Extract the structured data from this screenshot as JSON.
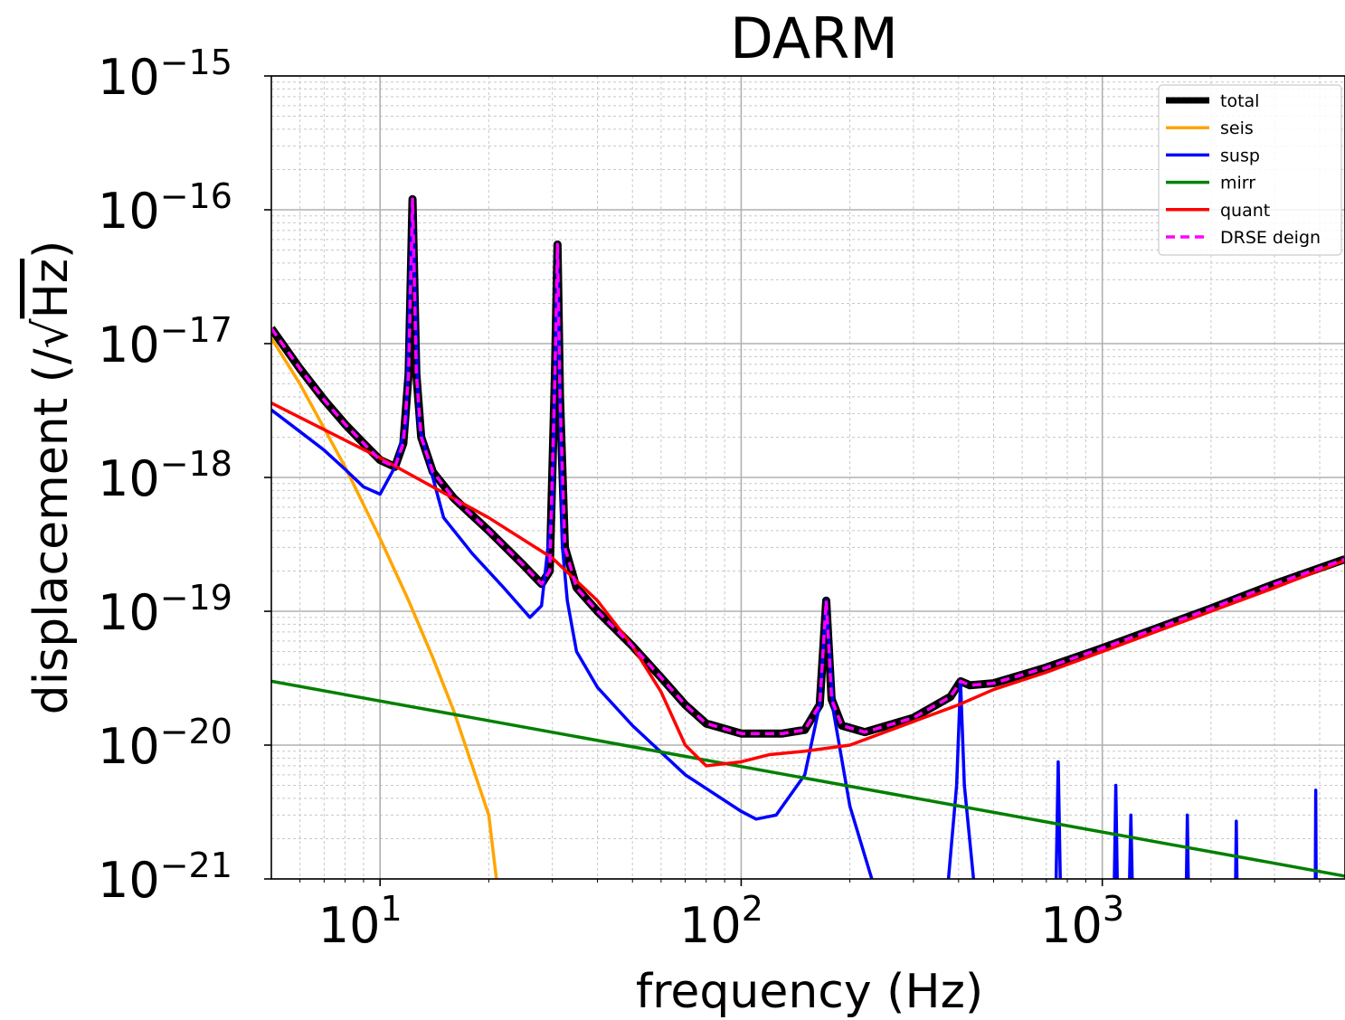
{
  "chart_data": {
    "type": "line",
    "title": "DARM",
    "xlabel": "frequency (Hz)",
    "ylabel_prefix": "displacement (/",
    "ylabel_radical": "√",
    "ylabel_unit": "Hz",
    "ylabel_suffix": ")",
    "x_scale": "log",
    "y_scale": "log",
    "xlim": [
      5,
      4700
    ],
    "ylim": [
      1e-21,
      1e-15
    ],
    "grid": "major and minor",
    "legend_position": "top-right",
    "x_ticks": [
      {
        "value": 10,
        "base": "10",
        "exp": "1"
      },
      {
        "value": 100,
        "base": "10",
        "exp": "2"
      },
      {
        "value": 1000,
        "base": "10",
        "exp": "3"
      }
    ],
    "y_ticks": [
      {
        "value": 1e-15,
        "base": "10",
        "exp": "−15"
      },
      {
        "value": 1e-16,
        "base": "10",
        "exp": "−16"
      },
      {
        "value": 1e-17,
        "base": "10",
        "exp": "−17"
      },
      {
        "value": 1e-18,
        "base": "10",
        "exp": "−18"
      },
      {
        "value": 1e-19,
        "base": "10",
        "exp": "−19"
      },
      {
        "value": 1e-20,
        "base": "10",
        "exp": "−20"
      },
      {
        "value": 1e-21,
        "base": "10",
        "exp": "−21"
      }
    ],
    "series": [
      {
        "name": "total",
        "color": "#000000",
        "style": "solid",
        "width": 9,
        "points": [
          [
            5,
            1.3e-17
          ],
          [
            6,
            6.5e-18
          ],
          [
            7,
            3.8e-18
          ],
          [
            8,
            2.5e-18
          ],
          [
            9,
            1.8e-18
          ],
          [
            10,
            1.35e-18
          ],
          [
            11,
            1.2e-18
          ],
          [
            11.6,
            1.8e-18
          ],
          [
            12,
            6e-18
          ],
          [
            12.3,
            1.2e-16
          ],
          [
            12.6,
            6e-18
          ],
          [
            13,
            2e-18
          ],
          [
            14,
            1.1e-18
          ],
          [
            16,
            7e-19
          ],
          [
            20,
            4e-19
          ],
          [
            25,
            2.2e-19
          ],
          [
            28,
            1.6e-19
          ],
          [
            29.5,
            2e-19
          ],
          [
            30.5,
            6e-18
          ],
          [
            31,
            5.5e-17
          ],
          [
            31.5,
            4e-18
          ],
          [
            32.5,
            3e-19
          ],
          [
            35,
            1.5e-19
          ],
          [
            40,
            1e-19
          ],
          [
            50,
            5.5e-20
          ],
          [
            60,
            3.2e-20
          ],
          [
            70,
            2e-20
          ],
          [
            80,
            1.45e-20
          ],
          [
            100,
            1.22e-20
          ],
          [
            130,
            1.22e-20
          ],
          [
            150,
            1.3e-20
          ],
          [
            165,
            2e-20
          ],
          [
            172,
            1.2e-19
          ],
          [
            178,
            2.2e-20
          ],
          [
            190,
            1.4e-20
          ],
          [
            220,
            1.25e-20
          ],
          [
            300,
            1.6e-20
          ],
          [
            380,
            2.3e-20
          ],
          [
            405,
            3e-20
          ],
          [
            430,
            2.8e-20
          ],
          [
            500,
            2.9e-20
          ],
          [
            700,
            3.8e-20
          ],
          [
            1000,
            5.3e-20
          ],
          [
            2000,
            1.05e-19
          ],
          [
            3000,
            1.6e-19
          ],
          [
            4700,
            2.45e-19
          ]
        ]
      },
      {
        "name": "seis",
        "color": "#ffa500",
        "style": "solid",
        "width": 3.5,
        "points": [
          [
            5,
            1.1e-17
          ],
          [
            6,
            5e-18
          ],
          [
            8,
            1.2e-18
          ],
          [
            10,
            3.5e-19
          ],
          [
            12,
            1.2e-19
          ],
          [
            14,
            4.5e-20
          ],
          [
            16,
            1.8e-20
          ],
          [
            18,
            7e-21
          ],
          [
            20,
            3e-21
          ],
          [
            21,
            1e-21
          ]
        ]
      },
      {
        "name": "susp",
        "color": "#0000ff",
        "style": "solid",
        "width": 3.5,
        "segments": [
          [
            [
              5,
              3.2e-18
            ],
            [
              6,
              2.2e-18
            ],
            [
              7,
              1.6e-18
            ],
            [
              8,
              1.15e-18
            ],
            [
              9,
              8.5e-19
            ],
            [
              10,
              7.5e-19
            ],
            [
              11,
              1.2e-18
            ],
            [
              11.8,
              2.5e-18
            ],
            [
              12.3,
              1.2e-16
            ],
            [
              12.8,
              2.5e-18
            ],
            [
              14,
              1e-18
            ],
            [
              15,
              5e-19
            ],
            [
              18,
              2.7e-19
            ],
            [
              22,
              1.5e-19
            ],
            [
              26,
              9e-20
            ],
            [
              28,
              1.1e-19
            ],
            [
              30,
              6e-19
            ],
            [
              31,
              5.5e-17
            ],
            [
              32,
              3e-19
            ],
            [
              33,
              1.2e-19
            ],
            [
              35,
              5e-20
            ],
            [
              40,
              2.7e-20
            ],
            [
              50,
              1.4e-20
            ],
            [
              70,
              6e-21
            ],
            [
              100,
              3.2e-21
            ],
            [
              110,
              2.8e-21
            ],
            [
              125,
              3e-21
            ],
            [
              150,
              6e-21
            ],
            [
              165,
              2e-20
            ],
            [
              172,
              1.2e-19
            ],
            [
              180,
              1.8e-20
            ],
            [
              200,
              3.5e-21
            ],
            [
              230,
              1e-21
            ]
          ],
          [
            [
              375,
              1e-21
            ],
            [
              395,
              5e-21
            ],
            [
              405,
              3e-20
            ],
            [
              415,
              5e-21
            ],
            [
              440,
              1e-21
            ]
          ],
          [
            [
              745,
              1e-21
            ],
            [
              755,
              7.5e-21
            ],
            [
              765,
              1e-21
            ]
          ],
          [
            [
              1080,
              1e-21
            ],
            [
              1090,
              5e-21
            ],
            [
              1100,
              1e-21
            ]
          ],
          [
            [
              1190,
              1e-21
            ],
            [
              1200,
              3e-21
            ],
            [
              1210,
              1e-21
            ]
          ],
          [
            [
              1710,
              1e-21
            ],
            [
              1720,
              3e-21
            ],
            [
              1730,
              1e-21
            ]
          ],
          [
            [
              2340,
              1e-21
            ],
            [
              2350,
              2.7e-21
            ],
            [
              2360,
              1e-21
            ]
          ],
          [
            [
              3890,
              1e-21
            ],
            [
              3900,
              4.6e-21
            ],
            [
              3910,
              1e-21
            ]
          ]
        ]
      },
      {
        "name": "mirr",
        "color": "#008000",
        "style": "solid",
        "width": 3.5,
        "points": [
          [
            5,
            3e-20
          ],
          [
            4700,
            1.05e-21
          ]
        ]
      },
      {
        "name": "quant",
        "color": "#ff0000",
        "style": "solid",
        "width": 3.5,
        "points": [
          [
            5,
            3.6e-18
          ],
          [
            10,
            1.4e-18
          ],
          [
            20,
            5e-19
          ],
          [
            30,
            2.5e-19
          ],
          [
            40,
            1.2e-19
          ],
          [
            50,
            5.5e-20
          ],
          [
            60,
            2.5e-20
          ],
          [
            70,
            1e-20
          ],
          [
            80,
            7e-21
          ],
          [
            100,
            7.5e-21
          ],
          [
            120,
            8.5e-21
          ],
          [
            150,
            9e-21
          ],
          [
            200,
            1e-20
          ],
          [
            300,
            1.5e-20
          ],
          [
            400,
            2e-20
          ],
          [
            500,
            2.6e-20
          ],
          [
            700,
            3.5e-20
          ],
          [
            1000,
            5e-20
          ],
          [
            2000,
            1e-19
          ],
          [
            3000,
            1.5e-19
          ],
          [
            4700,
            2.4e-19
          ]
        ]
      },
      {
        "name": "DRSE deign",
        "color": "#ff00ff",
        "style": "dashed",
        "width": 3.5,
        "same_as": "total"
      }
    ]
  }
}
